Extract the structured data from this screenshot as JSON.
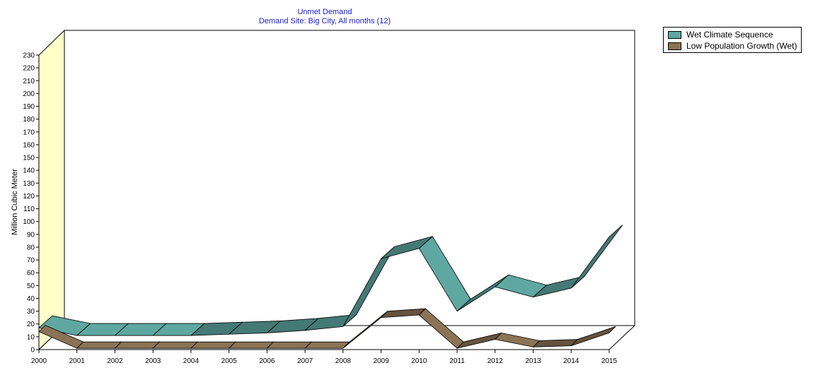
{
  "chart_data": {
    "type": "area",
    "style": "3d-ribbon",
    "title": "Unmet Demand",
    "subtitle": "Demand Site: Big City,  All months (12)",
    "xlabel": "",
    "ylabel": "Million Cubic Meter",
    "ylim": [
      0,
      230
    ],
    "ytick_step": 10,
    "categories": [
      "2000",
      "2001",
      "2002",
      "2003",
      "2004",
      "2005",
      "2006",
      "2007",
      "2008",
      "2009",
      "2010",
      "2011",
      "2012",
      "2013",
      "2014",
      "2015"
    ],
    "series": [
      {
        "name": "Wet Climate Sequence",
        "color": "#5fa8a2",
        "values": [
          17,
          11,
          11,
          11,
          11,
          12,
          13,
          15,
          18,
          71,
          79,
          30,
          49,
          41,
          48,
          88
        ]
      },
      {
        "name": "Low Population Growth (Wet)",
        "color": "#8b7355",
        "values": [
          14,
          1,
          1,
          1,
          1,
          1,
          1,
          1,
          1,
          25,
          27,
          1,
          8,
          2,
          3,
          13
        ]
      }
    ]
  },
  "legend": {
    "items": [
      {
        "label": "Wet Climate Sequence",
        "color": "#5fa8a2"
      },
      {
        "label": "Low Population Growth (Wet)",
        "color": "#8b7355"
      }
    ]
  }
}
